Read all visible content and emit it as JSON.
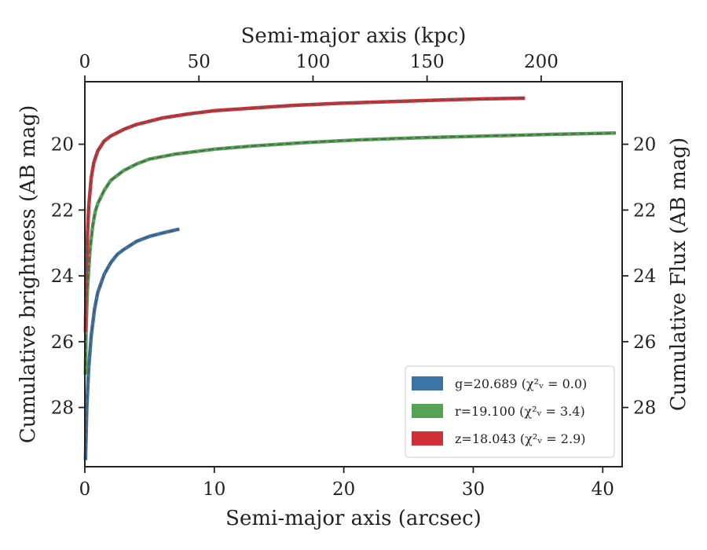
{
  "chart_data": {
    "type": "line",
    "title": "",
    "xlabel": "Semi-major axis (arcsec)",
    "xlabel_top": "Semi-major axis (kpc)",
    "ylabel": "Cumulative brightness (AB mag)",
    "ylabel_right": "Cumulative Flux (AB mag)",
    "xlim": [
      0,
      41.5
    ],
    "xlim_top": [
      0,
      235.5
    ],
    "ylim": [
      29.8,
      18.1
    ],
    "y_inverted": true,
    "x_ticks": [
      0,
      10,
      20,
      30,
      40
    ],
    "x_tick_labels": [
      "0",
      "10",
      "20",
      "30",
      "40"
    ],
    "x_top_ticks": [
      0,
      50,
      100,
      150,
      200
    ],
    "x_top_tick_labels": [
      "0",
      "50",
      "100",
      "150",
      "200"
    ],
    "y_ticks": [
      20,
      22,
      24,
      26,
      28
    ],
    "y_tick_labels": [
      "20",
      "22",
      "24",
      "26",
      "28"
    ],
    "y_right_ticks": [
      20,
      22,
      24,
      26,
      28
    ],
    "y_right_tick_labels": [
      "20",
      "22",
      "24",
      "26",
      "28"
    ],
    "grid": false,
    "legend_position": "lower right",
    "series": [
      {
        "name": "g=20.689 (χ²ᵥ = 0.0)",
        "legend_label": "g=20.689 (χ²ᵥ = 0.0)",
        "color": "#3c74a6",
        "x": [
          0.05,
          0.15,
          0.3,
          0.5,
          0.75,
          1.0,
          1.5,
          2.0,
          2.5,
          3.0,
          4.0,
          5.0,
          6.0,
          7.3
        ],
        "y": [
          29.6,
          28.0,
          26.8,
          25.8,
          25.0,
          24.5,
          23.95,
          23.6,
          23.35,
          23.2,
          22.95,
          22.8,
          22.7,
          22.58
        ]
      },
      {
        "name": "r=19.100 (χ²ᵥ = 3.4)",
        "legend_label": "r=19.100 (χ²ᵥ = 3.4)",
        "color": "#55a355",
        "x": [
          0.05,
          0.1,
          0.2,
          0.4,
          0.6,
          0.8,
          1.0,
          1.5,
          2.0,
          3.0,
          4.0,
          5.0,
          7.0,
          10.0,
          13.0,
          17.0,
          21.0,
          26.0,
          31.0,
          36.0,
          41.0
        ],
        "y": [
          27.0,
          25.6,
          24.4,
          23.2,
          22.5,
          22.05,
          21.8,
          21.4,
          21.1,
          20.8,
          20.6,
          20.45,
          20.3,
          20.15,
          20.05,
          19.95,
          19.87,
          19.8,
          19.75,
          19.7,
          19.66
        ]
      },
      {
        "name": "z=18.043 (χ²ᵥ = 2.9)",
        "legend_label": "z=18.043 (χ²ᵥ = 2.9)",
        "color": "#d03038",
        "x": [
          0.05,
          0.1,
          0.2,
          0.3,
          0.5,
          0.7,
          1.0,
          1.5,
          2.0,
          3.0,
          4.0,
          5.0,
          6.0,
          8.0,
          10.0,
          13.0,
          16.0,
          20.0,
          24.0,
          28.0,
          31.0,
          34.0
        ],
        "y": [
          25.7,
          24.2,
          22.8,
          21.9,
          21.0,
          20.55,
          20.2,
          19.9,
          19.75,
          19.55,
          19.4,
          19.3,
          19.2,
          19.08,
          18.98,
          18.9,
          18.82,
          18.75,
          18.7,
          18.65,
          18.62,
          18.6
        ]
      }
    ]
  }
}
